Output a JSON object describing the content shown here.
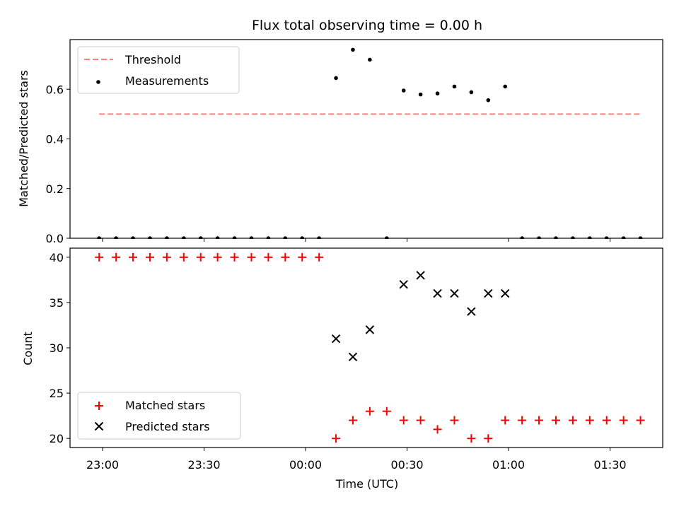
{
  "chart_data": {
    "type": "scatter",
    "title": "Flux total observing time = 0.00 h",
    "xlabel": "Time (UTC)",
    "x_tick_labels": [
      "23:00",
      "23:30",
      "00:00",
      "00:30",
      "01:00",
      "01:30"
    ],
    "x": [
      "22:59",
      "23:04",
      "23:09",
      "23:14",
      "23:19",
      "23:24",
      "23:29",
      "23:34",
      "23:39",
      "23:44",
      "23:49",
      "23:54",
      "23:59",
      "00:04",
      "00:09",
      "00:14",
      "00:19",
      "00:24",
      "00:29",
      "00:34",
      "00:39",
      "00:44",
      "00:49",
      "00:54",
      "00:59",
      "01:04",
      "01:09",
      "01:14",
      "01:19",
      "01:24",
      "01:29",
      "01:34",
      "01:39"
    ],
    "top": {
      "ylabel": "Matched/Predicted stars",
      "ylim": [
        0,
        0.8
      ],
      "y_ticks": [
        0.0,
        0.2,
        0.4,
        0.6
      ],
      "threshold": 0.5,
      "series": [
        {
          "name": "Threshold",
          "kind": "dashed-line",
          "color": "#ff7f7f"
        },
        {
          "name": "Measurements",
          "kind": "dot",
          "color": "#000000",
          "values": [
            0,
            0,
            0,
            0,
            0,
            0,
            0,
            0,
            0,
            0,
            0,
            0,
            0,
            0,
            0.645,
            0.759,
            0.719,
            0,
            0.595,
            0.579,
            0.583,
            0.611,
            0.588,
            0.556,
            0.611,
            0,
            0,
            0,
            0,
            0,
            0,
            0,
            0
          ]
        }
      ],
      "legend_position": "upper-left"
    },
    "bottom": {
      "ylabel": "Count",
      "ylim": [
        19,
        41
      ],
      "y_ticks": [
        20,
        25,
        30,
        35,
        40
      ],
      "series": [
        {
          "name": "Matched stars",
          "kind": "plus",
          "color": "#ff0000",
          "values": [
            40,
            40,
            40,
            40,
            40,
            40,
            40,
            40,
            40,
            40,
            40,
            40,
            40,
            40,
            20,
            22,
            23,
            23,
            22,
            22,
            21,
            22,
            20,
            20,
            22,
            22,
            22,
            22,
            22,
            22,
            22,
            22,
            22
          ]
        },
        {
          "name": "Predicted stars",
          "kind": "x",
          "color": "#000000",
          "values": [
            null,
            null,
            null,
            null,
            null,
            null,
            null,
            null,
            null,
            null,
            null,
            null,
            null,
            null,
            31,
            29,
            32,
            null,
            37,
            38,
            36,
            36,
            34,
            36,
            36,
            null,
            null,
            null,
            null,
            null,
            null,
            null,
            null
          ]
        }
      ],
      "legend_position": "lower-left"
    }
  }
}
